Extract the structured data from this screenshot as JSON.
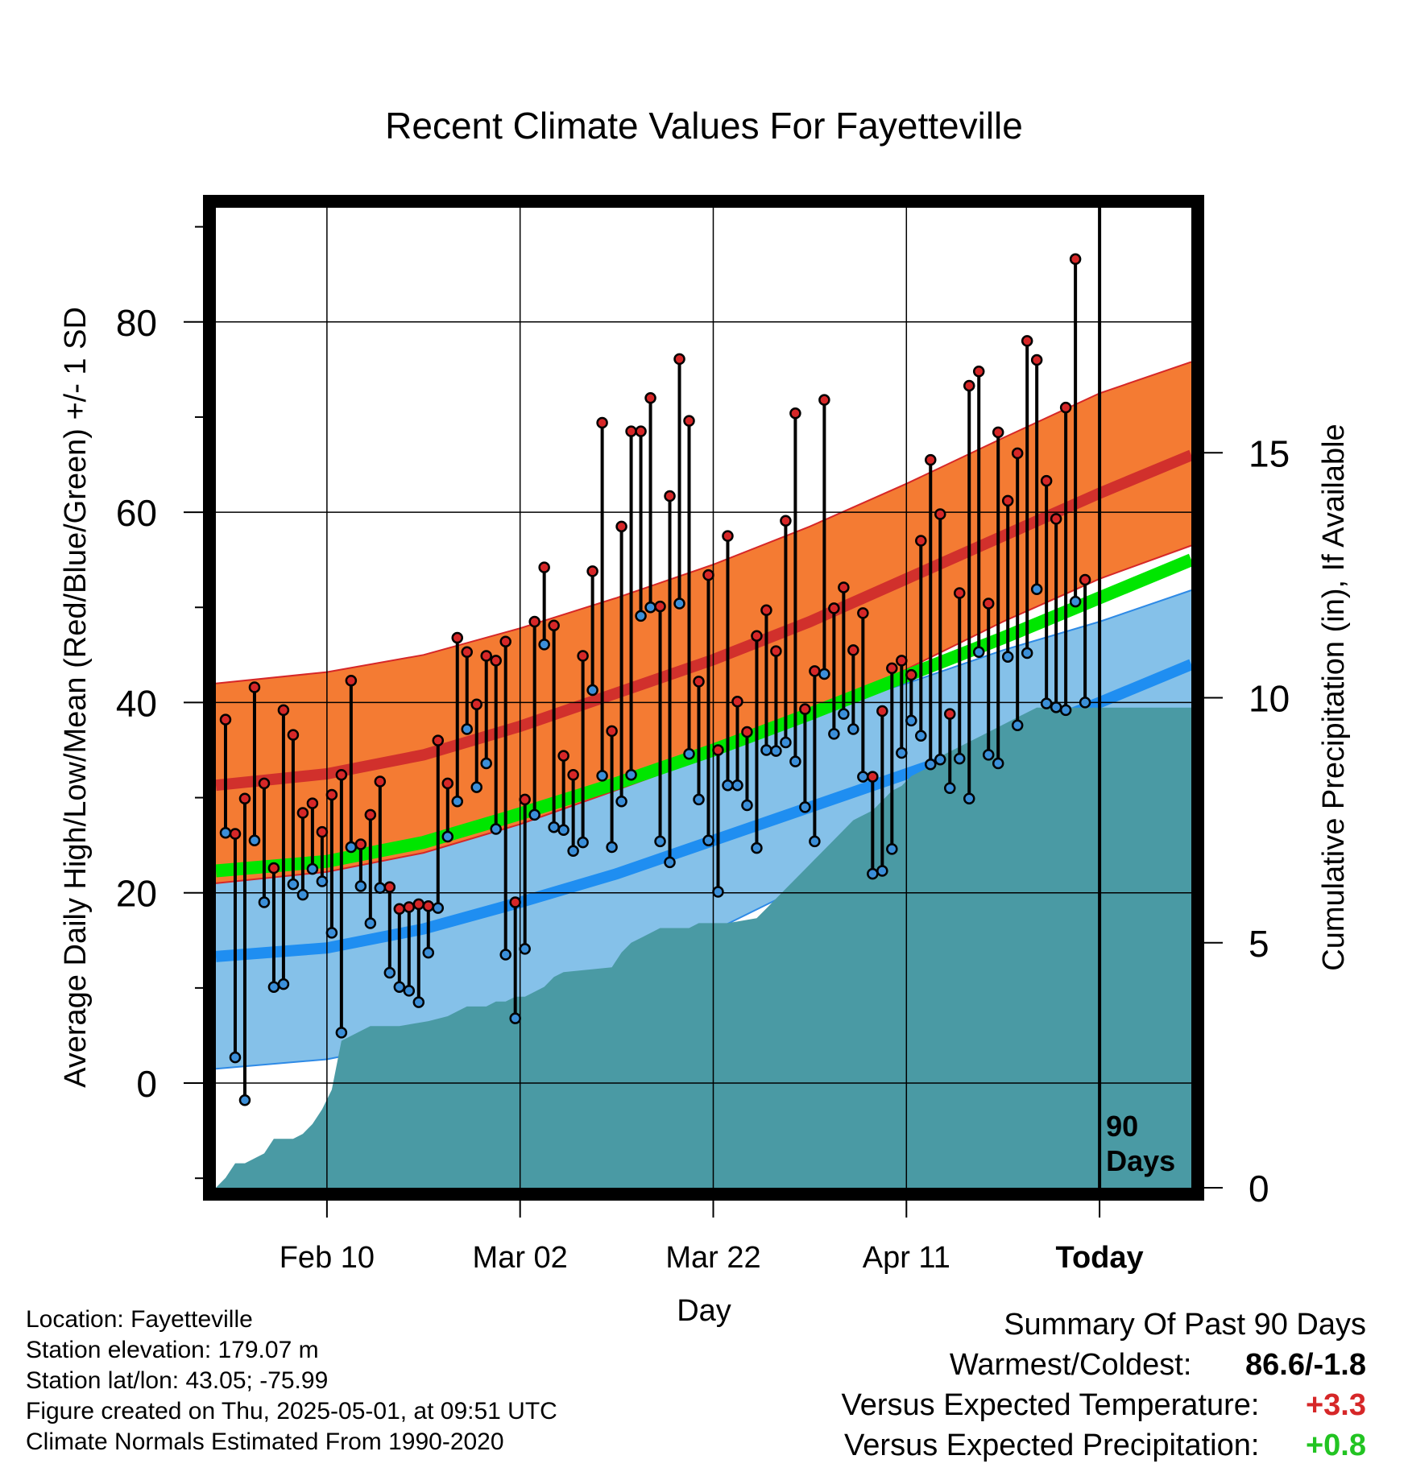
{
  "chart_data": {
    "type": "line",
    "title": "Recent Climate Values For Fayetteville",
    "xlabel": "Day",
    "ylabel": "Average Daily High/Low/Mean (Red/Blue/Green) +/- 1 SD",
    "y2label": "Cumulative Precipitation (in), If Available",
    "ylim": [
      -11,
      92
    ],
    "y_ticks": [
      0,
      20,
      40,
      60,
      80
    ],
    "y_tick_labels": [
      "0",
      "20",
      "40",
      "60",
      "80"
    ],
    "y2lim": [
      0,
      20
    ],
    "y2_ticks": [
      0,
      5,
      10,
      15
    ],
    "y2_tick_labels": [
      "0",
      "5",
      "10",
      "15"
    ],
    "xlim": [
      -11.5,
      89.5
    ],
    "x_ticks": [
      0,
      20,
      40,
      60,
      80
    ],
    "x_tick_labels": [
      "Feb 10",
      "Mar 02",
      "Mar 22",
      "Apr 11",
      "Today"
    ],
    "today_marker": {
      "x": 80,
      "label_line1": "90",
      "label_line2": "Days"
    },
    "normals": {
      "x": [
        -11.5,
        0,
        10,
        20,
        30,
        40,
        50,
        60,
        70,
        80,
        89.5
      ],
      "high_mean": [
        31.3,
        32.5,
        34.5,
        37.5,
        41.0,
        44.5,
        48.5,
        53.0,
        57.5,
        62.0,
        66.0
      ],
      "high_upper": [
        42.0,
        43.2,
        45.0,
        47.8,
        51.0,
        54.5,
        58.5,
        63.0,
        67.8,
        72.5,
        75.8
      ],
      "high_lower": [
        21.0,
        22.2,
        24.2,
        27.2,
        30.8,
        34.5,
        38.5,
        43.5,
        48.5,
        53.0,
        56.5
      ],
      "low_mean": [
        13.3,
        14.2,
        16.2,
        19.0,
        22.0,
        25.5,
        29.0,
        32.5,
        36.0,
        40.0,
        44.0
      ],
      "low_upper": [
        26.0,
        27.0,
        28.5,
        30.5,
        33.0,
        36.0,
        39.0,
        42.0,
        45.5,
        48.5,
        51.8
      ],
      "low_lower": [
        1.5,
        2.5,
        4.5,
        7.0,
        11.0,
        16.0,
        21.0,
        26.0,
        30.5,
        34.0,
        37.0
      ],
      "mean": [
        22.3,
        23.3,
        25.3,
        28.3,
        31.5,
        35.0,
        38.8,
        42.8,
        46.8,
        51.0,
        55.0
      ]
    },
    "series": [
      {
        "name": "High",
        "color": "#d62728",
        "x": [
          -10.5,
          -9.5,
          -8.5,
          -7.5,
          -6.5,
          -5.5,
          -4.5,
          -3.5,
          -2.5,
          -1.5,
          -0.5,
          0.5,
          1.5,
          2.5,
          3.5,
          4.5,
          5.5,
          6.5,
          7.5,
          8.5,
          9.5,
          10.5,
          11.5,
          12.5,
          13.5,
          14.5,
          15.5,
          16.5,
          17.5,
          18.5,
          19.5,
          20.5,
          21.5,
          22.5,
          23.5,
          24.5,
          25.5,
          26.5,
          27.5,
          28.5,
          29.5,
          30.5,
          31.5,
          32.5,
          33.5,
          34.5,
          35.5,
          36.5,
          37.5,
          38.5,
          39.5,
          40.5,
          41.5,
          42.5,
          43.5,
          44.5,
          45.5,
          46.5,
          47.5,
          48.5,
          49.5,
          50.5,
          51.5,
          52.5,
          53.5,
          54.5,
          55.5,
          56.5,
          57.5,
          58.5,
          59.5,
          60.5,
          61.5,
          62.5,
          63.5,
          64.5,
          65.5,
          66.5,
          67.5,
          68.5,
          69.5,
          70.5,
          71.5,
          72.5,
          73.5,
          74.5,
          75.5,
          76.5,
          77.5,
          78.5
        ],
        "values": [
          38.2,
          26.2,
          29.9,
          41.6,
          31.5,
          22.6,
          39.2,
          36.6,
          28.4,
          29.4,
          26.4,
          30.3,
          32.4,
          42.3,
          25.1,
          28.2,
          31.7,
          20.6,
          18.3,
          18.5,
          18.8,
          18.6,
          36.0,
          31.5,
          46.8,
          45.3,
          39.8,
          44.9,
          44.4,
          46.4,
          19.0,
          29.8,
          48.5,
          54.2,
          48.1,
          34.4,
          32.4,
          44.9,
          53.8,
          69.4,
          37.0,
          58.5,
          68.5,
          68.5,
          72.0,
          50.1,
          61.7,
          76.1,
          69.6,
          42.2,
          53.4,
          35.0,
          57.5,
          40.1,
          36.9,
          47.0,
          49.7,
          45.4,
          59.1,
          70.4,
          39.3,
          43.3,
          71.8,
          49.9,
          52.1,
          45.5,
          49.4,
          32.2,
          39.1,
          43.6,
          44.4,
          42.9,
          57.0,
          65.5,
          59.8,
          38.8,
          51.5,
          73.3,
          74.8,
          50.4,
          68.4,
          61.2,
          66.2,
          78.0,
          76.0,
          63.3,
          59.3,
          71.0,
          86.6,
          52.9
        ]
      },
      {
        "name": "Low",
        "color": "#3b8fd9",
        "x": [
          -10.5,
          -9.5,
          -8.5,
          -7.5,
          -6.5,
          -5.5,
          -4.5,
          -3.5,
          -2.5,
          -1.5,
          -0.5,
          0.5,
          1.5,
          2.5,
          3.5,
          4.5,
          5.5,
          6.5,
          7.5,
          8.5,
          9.5,
          10.5,
          11.5,
          12.5,
          13.5,
          14.5,
          15.5,
          16.5,
          17.5,
          18.5,
          19.5,
          20.5,
          21.5,
          22.5,
          23.5,
          24.5,
          25.5,
          26.5,
          27.5,
          28.5,
          29.5,
          30.5,
          31.5,
          32.5,
          33.5,
          34.5,
          35.5,
          36.5,
          37.5,
          38.5,
          39.5,
          40.5,
          41.5,
          42.5,
          43.5,
          44.5,
          45.5,
          46.5,
          47.5,
          48.5,
          49.5,
          50.5,
          51.5,
          52.5,
          53.5,
          54.5,
          55.5,
          56.5,
          57.5,
          58.5,
          59.5,
          60.5,
          61.5,
          62.5,
          63.5,
          64.5,
          65.5,
          66.5,
          67.5,
          68.5,
          69.5,
          70.5,
          71.5,
          72.5,
          73.5,
          74.5,
          75.5,
          76.5,
          77.5,
          78.5
        ],
        "values": [
          26.3,
          2.7,
          -1.8,
          25.5,
          19.0,
          10.1,
          10.4,
          20.9,
          19.8,
          22.5,
          21.2,
          15.8,
          5.3,
          24.8,
          20.7,
          16.8,
          20.5,
          11.6,
          10.1,
          9.7,
          8.5,
          13.7,
          18.4,
          25.9,
          29.6,
          37.2,
          31.1,
          33.6,
          26.7,
          13.5,
          6.8,
          14.1,
          28.2,
          46.1,
          26.9,
          26.6,
          24.4,
          25.3,
          41.3,
          32.3,
          24.8,
          29.6,
          32.4,
          49.1,
          50.0,
          25.4,
          23.2,
          50.4,
          34.6,
          29.8,
          25.5,
          20.1,
          31.3,
          31.3,
          29.2,
          24.7,
          35.0,
          34.9,
          35.8,
          33.8,
          29.0,
          25.4,
          43.0,
          36.7,
          38.8,
          37.2,
          32.2,
          22.0,
          22.3,
          24.6,
          34.7,
          38.1,
          36.5,
          33.5,
          34.0,
          31.0,
          34.1,
          29.9,
          45.3,
          34.5,
          33.6,
          44.8,
          37.6,
          45.2,
          51.9,
          39.9,
          39.5,
          39.2,
          50.6,
          40.0
        ]
      }
    ],
    "precipitation": {
      "name": "Cumulative Precipitation",
      "color": "#4a9aa4",
      "x": [
        -11.5,
        -10.5,
        -9.5,
        -8.5,
        -7.5,
        -6.5,
        -5.5,
        -4.5,
        -3.5,
        -2.5,
        -1.5,
        -0.5,
        0.5,
        1.5,
        2.5,
        3.5,
        4.5,
        5.5,
        6.5,
        7.5,
        10.5,
        12.5,
        13.5,
        14.5,
        15.5,
        16.5,
        17.5,
        18.5,
        19.5,
        20.5,
        21.5,
        22.5,
        23.5,
        24.5,
        29.5,
        30.5,
        31.5,
        32.5,
        33.5,
        34.5,
        37.5,
        38.5,
        40.5,
        41.5,
        44.5,
        45.5,
        46.5,
        47.5,
        48.5,
        49.5,
        50.5,
        51.5,
        52.5,
        53.5,
        54.5,
        55.5,
        56.5,
        57.5,
        58.5,
        59.5,
        60.5,
        61.5,
        62.5,
        63.5,
        64.5,
        65.5,
        66.5,
        67.5,
        68.5,
        69.5,
        70.5,
        71.5,
        72.5,
        73.5,
        74.5,
        75.5,
        76.5,
        77.5,
        78.5,
        89.5
      ],
      "values": [
        0.0,
        0.2,
        0.5,
        0.5,
        0.6,
        0.7,
        1.0,
        1.0,
        1.0,
        1.1,
        1.3,
        1.6,
        2.0,
        3.0,
        3.1,
        3.2,
        3.3,
        3.3,
        3.3,
        3.3,
        3.4,
        3.5,
        3.6,
        3.7,
        3.7,
        3.7,
        3.8,
        3.8,
        3.9,
        3.9,
        4.0,
        4.1,
        4.3,
        4.4,
        4.5,
        4.8,
        5.0,
        5.1,
        5.2,
        5.3,
        5.3,
        5.4,
        5.4,
        5.4,
        5.5,
        5.7,
        5.9,
        6.1,
        6.3,
        6.5,
        6.7,
        6.9,
        7.1,
        7.3,
        7.5,
        7.6,
        7.7,
        7.9,
        8.1,
        8.2,
        8.4,
        8.5,
        8.6,
        8.8,
        8.9,
        9.0,
        9.1,
        9.2,
        9.3,
        9.4,
        9.5,
        9.6,
        9.7,
        9.8,
        9.8,
        9.8,
        9.8,
        9.8,
        9.8,
        9.8
      ]
    }
  },
  "info": {
    "location": "Location: Fayetteville",
    "elevation": "Station elevation: 179.07 m",
    "latlon": "Station lat/lon: 43.05; -75.99",
    "created": "Figure created on Thu, 2025-05-01, at 09:51 UTC",
    "normals_period": "Climate Normals Estimated From 1990-2020"
  },
  "summary": {
    "heading": "Summary Of Past 90 Days",
    "warmest_coldest_label": "Warmest/Coldest:",
    "warmest_coldest_value": "86.6/-1.8",
    "temp_label": "Versus Expected Temperature:",
    "temp_value": "+3.3",
    "temp_color": "#d62728",
    "precip_label": "Versus Expected Precipitation:",
    "precip_value": "+0.8",
    "precip_color": "#22c422"
  }
}
